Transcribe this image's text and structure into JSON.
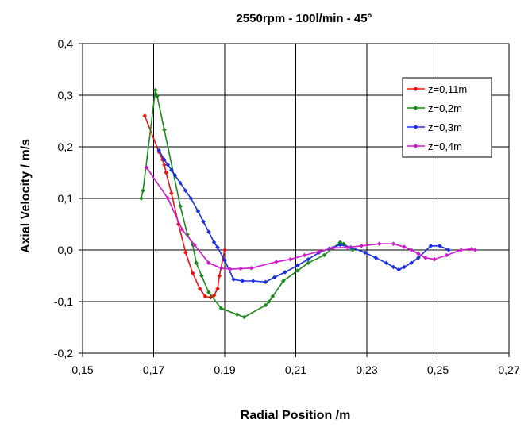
{
  "chart_data": {
    "type": "line",
    "title": "2550rpm - 100l/min - 45°",
    "xlabel": "Radial Position /m",
    "ylabel": "Axial Velocity / m/s",
    "xlim": [
      0.15,
      0.27
    ],
    "ylim": [
      -0.2,
      0.4
    ],
    "x_ticks": [
      0.15,
      0.17,
      0.19,
      0.21,
      0.23,
      0.25,
      0.27
    ],
    "x_tick_labels": [
      "0,15",
      "0,17",
      "0,19",
      "0,21",
      "0,23",
      "0,25",
      "0,27"
    ],
    "y_ticks": [
      -0.2,
      -0.1,
      0.0,
      0.1,
      0.2,
      0.3,
      0.4
    ],
    "y_tick_labels": [
      "-0,2",
      "-0,1",
      "0,0",
      "0,1",
      "0,2",
      "0,3",
      "0,4"
    ],
    "grid": true,
    "legend_position": "top-right",
    "series": [
      {
        "name": "z=0,11m",
        "color": "#ee1111",
        "points": [
          [
            0.1675,
            0.26
          ],
          [
            0.1715,
            0.19
          ],
          [
            0.1725,
            0.175
          ],
          [
            0.173,
            0.165
          ],
          [
            0.1735,
            0.15
          ],
          [
            0.175,
            0.11
          ],
          [
            0.177,
            0.05
          ],
          [
            0.179,
            -0.005
          ],
          [
            0.181,
            -0.045
          ],
          [
            0.183,
            -0.075
          ],
          [
            0.1845,
            -0.09
          ],
          [
            0.186,
            -0.092
          ],
          [
            0.187,
            -0.088
          ],
          [
            0.188,
            -0.075
          ],
          [
            0.1885,
            -0.05
          ],
          [
            0.19,
            0.0
          ]
        ]
      },
      {
        "name": "z=0,2m",
        "color": "#1a8a1a",
        "points": [
          [
            0.1665,
            0.1
          ],
          [
            0.167,
            0.115
          ],
          [
            0.1705,
            0.31
          ],
          [
            0.171,
            0.298
          ],
          [
            0.173,
            0.233
          ],
          [
            0.1775,
            0.085
          ],
          [
            0.1795,
            0.03
          ],
          [
            0.181,
            0.01
          ],
          [
            0.182,
            -0.025
          ],
          [
            0.1835,
            -0.05
          ],
          [
            0.1855,
            -0.082
          ],
          [
            0.189,
            -0.113
          ],
          [
            0.1935,
            -0.125
          ],
          [
            0.1955,
            -0.13
          ],
          [
            0.2015,
            -0.107
          ],
          [
            0.2025,
            -0.1
          ],
          [
            0.2035,
            -0.09
          ],
          [
            0.2065,
            -0.06
          ],
          [
            0.2105,
            -0.04
          ],
          [
            0.2135,
            -0.025
          ],
          [
            0.218,
            -0.01
          ],
          [
            0.2225,
            0.015
          ],
          [
            0.2235,
            0.012
          ],
          [
            0.226,
            0.0
          ]
        ]
      },
      {
        "name": "z=0,3m",
        "color": "#1a2ee0",
        "points": [
          [
            0.1715,
            0.193
          ],
          [
            0.173,
            0.175
          ],
          [
            0.174,
            0.165
          ],
          [
            0.175,
            0.155
          ],
          [
            0.176,
            0.145
          ],
          [
            0.1775,
            0.13
          ],
          [
            0.179,
            0.115
          ],
          [
            0.1805,
            0.1
          ],
          [
            0.1825,
            0.075
          ],
          [
            0.184,
            0.055
          ],
          [
            0.1855,
            0.035
          ],
          [
            0.187,
            0.015
          ],
          [
            0.188,
            0.005
          ],
          [
            0.19,
            -0.02
          ],
          [
            0.1925,
            -0.057
          ],
          [
            0.195,
            -0.06
          ],
          [
            0.198,
            -0.06
          ],
          [
            0.2015,
            -0.062
          ],
          [
            0.204,
            -0.053
          ],
          [
            0.207,
            -0.043
          ],
          [
            0.2105,
            -0.03
          ],
          [
            0.2135,
            -0.018
          ],
          [
            0.2165,
            -0.005
          ],
          [
            0.2195,
            0.003
          ],
          [
            0.2225,
            0.01
          ],
          [
            0.2255,
            0.005
          ],
          [
            0.2295,
            -0.005
          ],
          [
            0.2325,
            -0.015
          ],
          [
            0.2355,
            -0.025
          ],
          [
            0.2375,
            -0.033
          ],
          [
            0.239,
            -0.038
          ],
          [
            0.2405,
            -0.033
          ],
          [
            0.2425,
            -0.025
          ],
          [
            0.2445,
            -0.015
          ],
          [
            0.248,
            0.008
          ],
          [
            0.2505,
            0.008
          ],
          [
            0.253,
            0.0
          ]
        ]
      },
      {
        "name": "z=0,4m",
        "color": "#cc1acc",
        "points": [
          [
            0.168,
            0.16
          ],
          [
            0.174,
            0.1
          ],
          [
            0.178,
            0.04
          ],
          [
            0.1815,
            0.01
          ],
          [
            0.1855,
            -0.025
          ],
          [
            0.189,
            -0.035
          ],
          [
            0.1915,
            -0.037
          ],
          [
            0.1945,
            -0.036
          ],
          [
            0.1975,
            -0.035
          ],
          [
            0.2045,
            -0.023
          ],
          [
            0.2085,
            -0.018
          ],
          [
            0.2125,
            -0.01
          ],
          [
            0.2165,
            -0.003
          ],
          [
            0.2205,
            0.004
          ],
          [
            0.2245,
            0.005
          ],
          [
            0.2285,
            0.008
          ],
          [
            0.2335,
            0.012
          ],
          [
            0.2375,
            0.012
          ],
          [
            0.2405,
            0.006
          ],
          [
            0.2425,
            0.0
          ],
          [
            0.2445,
            -0.007
          ],
          [
            0.2465,
            -0.015
          ],
          [
            0.249,
            -0.018
          ],
          [
            0.2525,
            -0.01
          ],
          [
            0.2565,
            0.0
          ],
          [
            0.2595,
            0.002
          ],
          [
            0.2605,
            0.0
          ]
        ]
      }
    ]
  }
}
